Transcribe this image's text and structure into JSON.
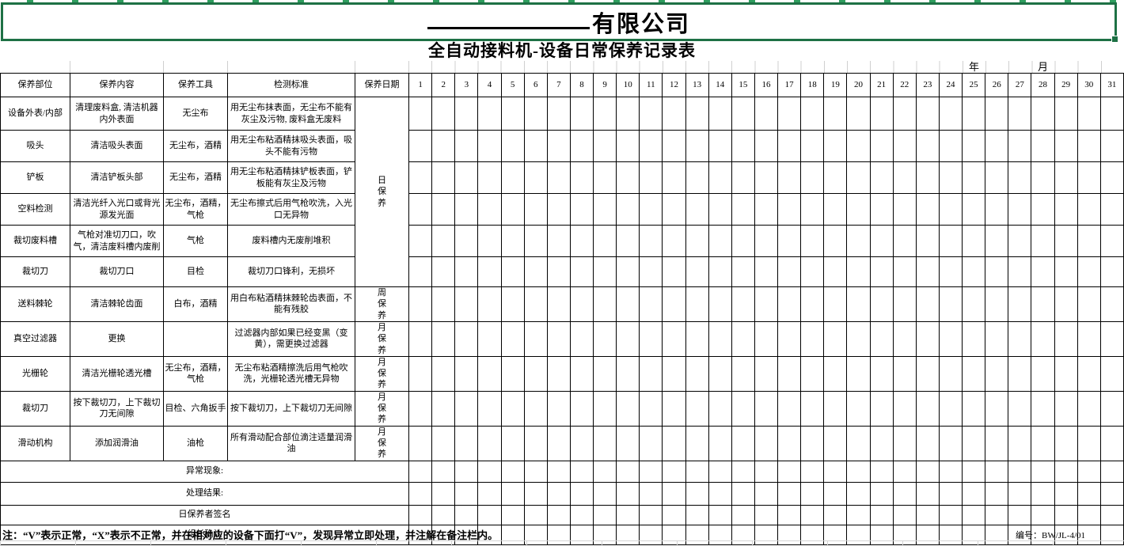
{
  "header": {
    "company_suffix": "有限公司",
    "title": "全自动接料机-设备日常保养记录表",
    "year_label": "年",
    "month_label": "月"
  },
  "table": {
    "columns": [
      "保养部位",
      "保养内容",
      "保养工具",
      "检测标准",
      "保养日期"
    ],
    "days": [
      1,
      2,
      3,
      4,
      5,
      6,
      7,
      8,
      9,
      10,
      11,
      12,
      13,
      14,
      15,
      16,
      17,
      18,
      19,
      20,
      21,
      22,
      23,
      24,
      25,
      26,
      27,
      28,
      29,
      30,
      31
    ],
    "rows": [
      {
        "part": "设备外表/内部",
        "content": "清理废料盒, 清洁机器内外表面",
        "tool": "无尘布",
        "standard": "用无尘布抹表面，无尘布不能有灰尘及污物, 废料盒无废料",
        "freq": "日保养",
        "freq_span": 6
      },
      {
        "part": "吸头",
        "content": "清洁吸头表面",
        "tool": "无尘布，酒精",
        "standard": "用无尘布粘酒精抹吸头表面，吸头不能有污物"
      },
      {
        "part": "铲板",
        "content": "清洁铲板头部",
        "tool": "无尘布，酒精",
        "standard": "用无尘布粘酒精抹铲板表面，铲板能有灰尘及污物"
      },
      {
        "part": "空料检测",
        "content": "清洁光纤入光口或背光源发光面",
        "tool": "无尘布，酒精，气枪",
        "standard": "无尘布擦式后用气枪吹洗，入光口无异物"
      },
      {
        "part": "裁切废料槽",
        "content": "气枪对准切刀口，吹气，清洁废料槽内废削",
        "tool": "气枪",
        "standard": "废料槽内无废削堆积"
      },
      {
        "part": "裁切刀",
        "content": "裁切刀口",
        "tool": "目检",
        "standard": "裁切刀口锋利，无损坏"
      },
      {
        "part": "送料棘轮",
        "content": "清洁棘轮齿面",
        "tool": "白布，酒精",
        "standard": "用白布粘酒精抹棘轮齿表面，不能有残胶",
        "freq": "周保养",
        "freq_span": 1
      },
      {
        "part": "真空过滤器",
        "content": "更换",
        "tool": "",
        "standard": "过滤器内部如果已经变黑（变黄），需更换过滤器",
        "freq": "月保养",
        "freq_span": 1
      },
      {
        "part": "光栅轮",
        "content": "清洁光栅轮透光槽",
        "tool": "无尘布，酒精，气枪",
        "standard": "无尘布粘酒精擦洗后用气枪吹洗，光栅轮透光槽无异物",
        "freq": "月保养",
        "freq_span": 1
      },
      {
        "part": "裁切刀",
        "content": "按下裁切刀，上下裁切刀无间隙",
        "tool": "目检、六角扳手",
        "standard": "按下裁切刀，上下裁切刀无间隙",
        "freq": "月保养",
        "freq_span": 1
      },
      {
        "part": "滑动机构",
        "content": "添加润滑油",
        "tool": "油枪",
        "standard": "所有滑动配合部位滴注适量润滑油",
        "freq": "月保养",
        "freq_span": 1
      }
    ],
    "footer_rows": [
      "异常现象:",
      "处理结果:",
      "日保养者签名",
      "组长确认"
    ]
  },
  "note": {
    "text": "注：“V”表示正常，“X”表示不正常，并在相对应的设备下面打“V”，发现异常立即处理，并注解在备注栏内。",
    "doc_no": "编号：BW/JL-4/01"
  },
  "colors": {
    "accent_green": "#1E7145",
    "grid_black": "#000000",
    "light_grid": "#d4d4d4"
  }
}
